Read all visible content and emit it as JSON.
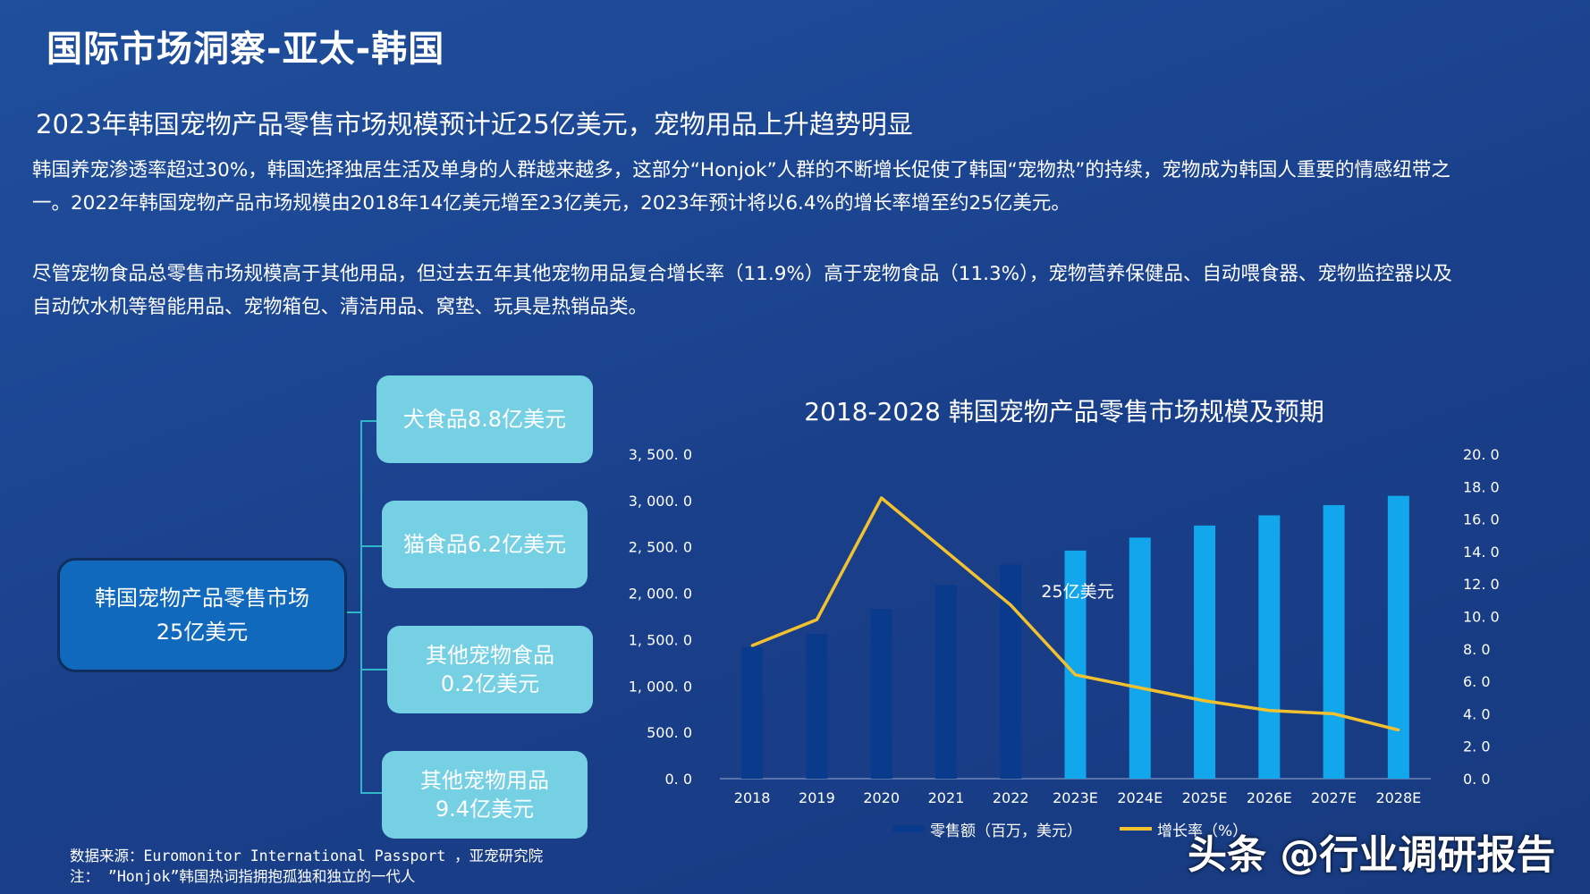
{
  "page": {
    "title": "国际市场洞察-亚太-韩国",
    "subtitle": "2023年韩国宠物产品零售市场规模预计近25亿美元，宠物用品上升趋势明显",
    "paragraph1": "韩国养宠渗透率超过30%，韩国选择独居生活及单身的人群越来越多，这部分“Honjok”人群的不断增长促使了韩国“宠物热”的持续，宠物成为韩国人重要的情感纽带之一。2022年韩国宠物产品市场规模由2018年14亿美元增至23亿美元，2023年预计将以6.4%的增长率增至约25亿美元。",
    "paragraph2": "尽管宠物食品总零售市场规模高于其他用品，但过去五年其他宠物用品复合增长率（11.9%）高于宠物食品（11.3%），宠物营养保健品、自动喂食器、宠物监控器以及自动饮水机等智能用品、宠物箱包、清洁用品、窝垫、玩具是热销品类。"
  },
  "tree": {
    "root_line1": "韩国宠物产品零售市场",
    "root_line2": "25亿美元",
    "leaves": [
      {
        "line1": "犬食品8.8亿美元",
        "line2": ""
      },
      {
        "line1": "猫食品6.2亿美元",
        "line2": ""
      },
      {
        "line1": "其他宠物食品",
        "line2": "0.2亿美元"
      },
      {
        "line1": "其他宠物用品",
        "line2": "9.4亿美元"
      }
    ]
  },
  "chart_data": {
    "type": "bar",
    "title": "2018-2028 韩国宠物产品零售市场规模及预期",
    "categories": [
      "2018",
      "2019",
      "2020",
      "2021",
      "2022",
      "2023E",
      "2024E",
      "2025E",
      "2026E",
      "2027E",
      "2028E"
    ],
    "y_left": {
      "ticks": [
        "3, 500. 0",
        "3, 000. 0",
        "2, 500. 0",
        "2, 000. 0",
        "1, 500. 0",
        "1, 000. 0",
        "500. 0",
        "0. 0"
      ],
      "range": [
        0,
        3500
      ]
    },
    "y_right": {
      "ticks": [
        "20. 0",
        "18. 0",
        "16. 0",
        "14. 0",
        "12. 0",
        "10. 0",
        "8. 0",
        "6. 0",
        "4. 0",
        "2. 0",
        "0. 0"
      ],
      "range": [
        0,
        20
      ]
    },
    "series": [
      {
        "name": "零售额（百万，美元）",
        "type": "bar",
        "axis": "left",
        "values": [
          1420,
          1560,
          1830,
          2090,
          2310,
          2460,
          2600,
          2730,
          2840,
          2950,
          3050
        ],
        "colors": [
          "#0a3a8c",
          "#0a3a8c",
          "#0a3a8c",
          "#0a3a8c",
          "#0a3a8c",
          "#12a6ec",
          "#12a6ec",
          "#12a6ec",
          "#12a6ec",
          "#12a6ec",
          "#12a6ec"
        ]
      },
      {
        "name": "增长率（%）",
        "type": "line",
        "axis": "right",
        "color": "#f2c12e",
        "values": [
          8.2,
          9.8,
          17.3,
          14.0,
          10.7,
          6.4,
          5.6,
          4.8,
          4.2,
          4.0,
          3.0
        ]
      }
    ],
    "annotation": "25亿美元",
    "legend_position": "bottom"
  },
  "footer": {
    "source": "数据来源：Euromonitor International Passport ，亚宠研究院",
    "note": "注： ”Honjok”韩国热词指拥抱孤独和独立的一代人",
    "watermark": "头条 @行业调研报告"
  }
}
